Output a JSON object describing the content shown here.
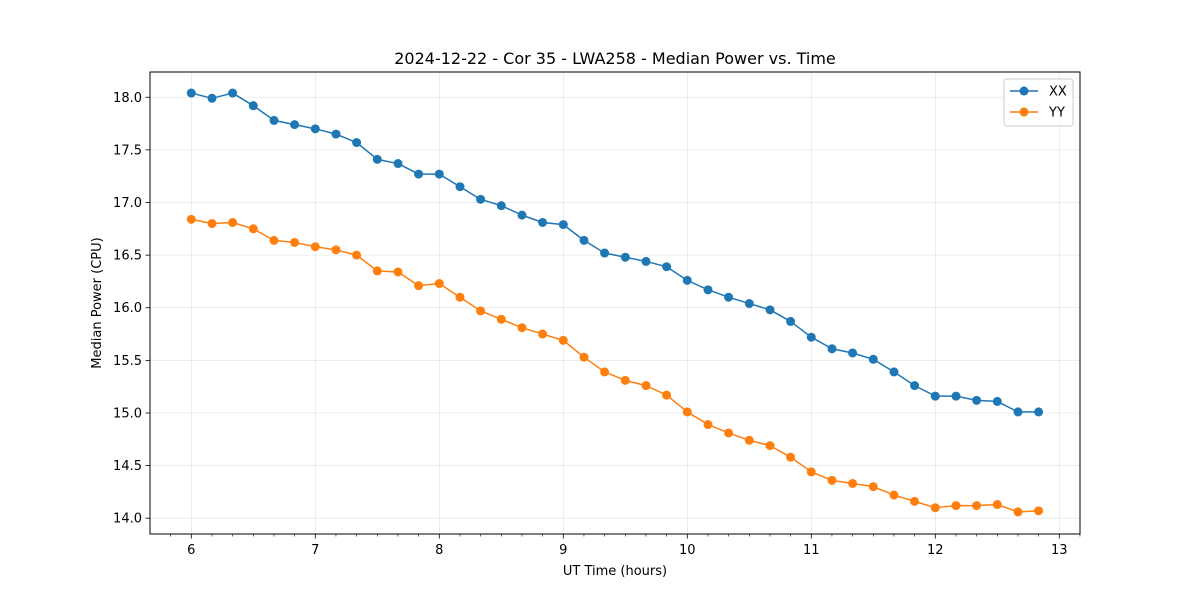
{
  "chart_data": {
    "type": "line",
    "title": "2024-12-22 - Cor 35 - LWA258 - Median Power vs. Time",
    "xlabel": "UT Time (hours)",
    "ylabel": "Median Power (CPU)",
    "xlim": [
      5.667,
      13.167
    ],
    "ylim": [
      13.85,
      18.24
    ],
    "xticks": [
      6,
      7,
      8,
      9,
      10,
      11,
      12,
      13
    ],
    "yticks": [
      14.0,
      14.5,
      15.0,
      15.5,
      16.0,
      16.5,
      17.0,
      17.5,
      18.0
    ],
    "grid": true,
    "legend_position": "top-right",
    "x": [
      6.0,
      6.167,
      6.333,
      6.5,
      6.667,
      6.833,
      7.0,
      7.167,
      7.333,
      7.5,
      7.667,
      7.833,
      8.0,
      8.167,
      8.333,
      8.5,
      8.667,
      8.833,
      9.0,
      9.167,
      9.333,
      9.5,
      9.667,
      9.833,
      10.0,
      10.167,
      10.333,
      10.5,
      10.667,
      10.833,
      11.0,
      11.167,
      11.333,
      11.5,
      11.667,
      11.833,
      12.0,
      12.167,
      12.333,
      12.5,
      12.667,
      12.833
    ],
    "series": [
      {
        "name": "XX",
        "color": "#1f77b4",
        "values": [
          18.04,
          17.99,
          18.04,
          17.92,
          17.78,
          17.74,
          17.7,
          17.65,
          17.57,
          17.41,
          17.37,
          17.27,
          17.27,
          17.15,
          17.03,
          16.97,
          16.88,
          16.81,
          16.79,
          16.64,
          16.52,
          16.48,
          16.44,
          16.39,
          16.26,
          16.17,
          16.1,
          16.04,
          15.98,
          15.87,
          15.72,
          15.61,
          15.57,
          15.51,
          15.39,
          15.26,
          15.16,
          15.16,
          15.12,
          15.11,
          15.01,
          15.01
        ]
      },
      {
        "name": "YY",
        "color": "#ff7f0e",
        "values": [
          16.84,
          16.8,
          16.81,
          16.75,
          16.64,
          16.62,
          16.58,
          16.55,
          16.5,
          16.35,
          16.34,
          16.21,
          16.23,
          16.1,
          15.97,
          15.89,
          15.81,
          15.75,
          15.69,
          15.53,
          15.39,
          15.31,
          15.26,
          15.17,
          15.01,
          14.89,
          14.81,
          14.74,
          14.69,
          14.58,
          14.44,
          14.36,
          14.33,
          14.3,
          14.22,
          14.16,
          14.1,
          14.12,
          14.12,
          14.13,
          14.06,
          14.07
        ]
      }
    ]
  }
}
